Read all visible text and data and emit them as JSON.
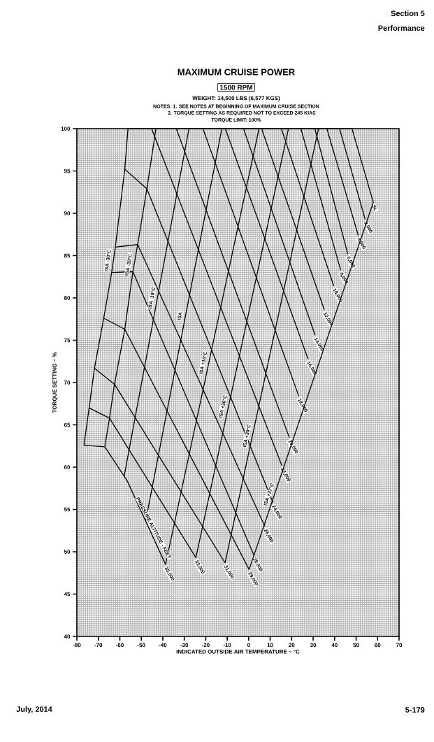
{
  "chart_data": {
    "type": "line",
    "title": "MAXIMUM CRUISE POWER",
    "subtitle": "1500 RPM",
    "xlabel": "INDICATED OUTSIDE AIR TEMPERATURE ~ °C",
    "ylabel": "TORQUE SETTING ~ %",
    "annotations": [
      "WEIGHT: 14,500 LBS (6,577 KGS)",
      "NOTES: 1. SEE NOTES AT BEGINNING OF MAXIMUM CRUISE SECTION",
      "2. TORQUE SETTING AS REQUIRED NOT TO EXCEED 245 KIAS",
      "TORQUE LIMIT: 100%",
      "PRESSURE ALTITUDE - FEET",
      "Section 5",
      "Performance",
      "July, 2014",
      "5-179"
    ],
    "xlim": [
      -80,
      70
    ],
    "ylim": [
      40,
      100
    ],
    "xticks": [
      -80,
      -70,
      -60,
      -50,
      -40,
      -30,
      -20,
      -10,
      0,
      10,
      20,
      30,
      40,
      50,
      60,
      70
    ],
    "yticks": [
      40,
      45,
      50,
      55,
      60,
      65,
      70,
      75,
      80,
      85,
      90,
      95,
      100
    ],
    "grid": true,
    "series": [
      {
        "name": "SL",
        "color": "#000000",
        "x": [
          48.1,
          58
        ],
        "values": [
          100,
          91.3
        ]
      },
      {
        "name": "2,000",
        "color": "#000000",
        "x": [
          42.3,
          54.2
        ],
        "values": [
          100,
          89.3
        ]
      },
      {
        "name": "4,000",
        "color": "#000000",
        "x": [
          36.4,
          51
        ],
        "values": [
          100,
          87.4
        ]
      },
      {
        "name": "6,000",
        "color": "#000000",
        "x": [
          30.8,
          46.1
        ],
        "values": [
          100,
          85.2
        ]
      },
      {
        "name": "8,000",
        "color": "#000000",
        "x": [
          24.3,
          42.8
        ],
        "values": [
          100,
          83.3
        ]
      },
      {
        "name": "10,000",
        "color": "#000000",
        "x": [
          15.2,
          39.6
        ],
        "values": [
          100,
          81.4
        ]
      },
      {
        "name": "12,000",
        "color": "#000000",
        "x": [
          6.0,
          35.2
        ],
        "values": [
          100,
          78.6
        ]
      },
      {
        "name": "14,000",
        "color": "#000000",
        "x": [
          -2.4,
          30.9
        ],
        "values": [
          100,
          75.6
        ]
      },
      {
        "name": "16,000",
        "color": "#000000",
        "x": [
          -10.9,
          27.6
        ],
        "values": [
          100,
          72.8
        ]
      },
      {
        "name": "18,000",
        "color": "#000000",
        "x": [
          -21.3,
          23.3
        ],
        "values": [
          100,
          68.4
        ]
      },
      {
        "name": "20,000",
        "color": "#000000",
        "x": [
          -33.7,
          18.9
        ],
        "values": [
          100,
          63.5
        ]
      },
      {
        "name": "22,000",
        "color": "#000000",
        "x": [
          -45.2,
          15.4
        ],
        "values": [
          100,
          60.2
        ]
      },
      {
        "name": "24,000",
        "color": "#000000",
        "x": [
          -57.7,
          -47.4,
          11.3
        ],
        "values": [
          95.2,
          92.9,
          55.8
        ]
      },
      {
        "name": "26,000",
        "color": "#000000",
        "x": [
          -62.1,
          -51.7,
          7.5
        ],
        "values": [
          86,
          86.3,
          53
        ]
      },
      {
        "name": "28,000",
        "color": "#000000",
        "x": [
          -63.8,
          -53.9,
          2.4
        ],
        "values": [
          83,
          83.1,
          49.6
        ]
      },
      {
        "name": "29,000",
        "color": "#000000",
        "x": [
          -67.5,
          -57.7,
          0.2
        ],
        "values": [
          77.6,
          76.3,
          47.9
        ]
      },
      {
        "name": "31,000",
        "color": "#000000",
        "x": [
          -71.8,
          -62.5,
          -11
        ],
        "values": [
          71.7,
          69.8,
          48.7
        ]
      },
      {
        "name": "33,000",
        "color": "#000000",
        "x": [
          -74.3,
          -64.8,
          -24.6
        ],
        "values": [
          67,
          65.8,
          49.3
        ]
      },
      {
        "name": "35,000",
        "color": "#000000",
        "x": [
          -76.7,
          -67,
          -56.6,
          -38.7
        ],
        "values": [
          62.6,
          62.4,
          58.4,
          48.5
        ]
      },
      {
        "name": "ISA -30°C",
        "color": "#000000",
        "x": [
          -56.2,
          -57.7,
          -62.1,
          -63.8,
          -67.5,
          -71.8,
          -74.3,
          -76.7
        ],
        "values": [
          100,
          95.2,
          86,
          83,
          77.6,
          71.7,
          67,
          62.6
        ]
      },
      {
        "name": "ISA -20°C",
        "color": "#000000",
        "x": [
          -43.2,
          -47.4,
          -51.7,
          -53.9,
          -57.7,
          -62.5,
          -64.8,
          -67
        ],
        "values": [
          100,
          92.9,
          86.3,
          83.1,
          76.3,
          69.8,
          65.8,
          62.4
        ]
      },
      {
        "name": "ISA -10°C",
        "color": "#000000",
        "x": [
          -27.8,
          -58
        ],
        "values": [
          100,
          58.9
        ]
      },
      {
        "name": "ISA",
        "color": "#000000",
        "x": [
          -12.5,
          -48
        ],
        "values": [
          100,
          53.6
        ]
      },
      {
        "name": "ISA +10°C",
        "color": "#000000",
        "x": [
          4.8,
          -38.7
        ],
        "values": [
          100,
          48.5
        ]
      },
      {
        "name": "ISA +20°C",
        "color": "#000000",
        "x": [
          18.5,
          -24.6
        ],
        "values": [
          100,
          49.3
        ]
      },
      {
        "name": "ISA +30°C",
        "color": "#000000",
        "x": [
          32.5,
          -11
        ],
        "values": [
          100,
          48.7
        ]
      },
      {
        "name": "ISA +37°C",
        "color": "#000000",
        "x": [
          58,
          0.2
        ],
        "values": [
          91.3,
          47.9
        ]
      },
      {
        "color": "#000000",
        "x": [
          -56.2,
          48.1
        ],
        "values": [
          100,
          100
        ]
      }
    ]
  }
}
